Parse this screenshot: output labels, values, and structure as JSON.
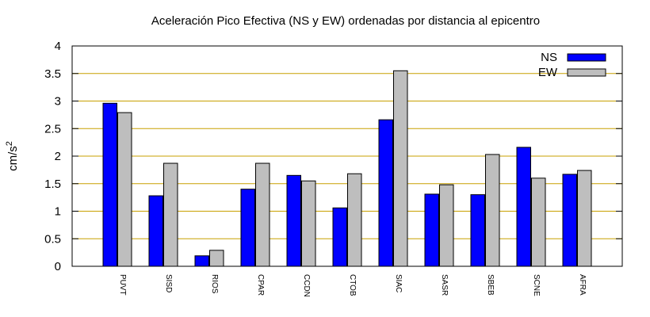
{
  "chart_data": {
    "type": "bar",
    "title": "Aceleración Pico Efectiva (NS y EW) ordenadas por distancia al epicentro",
    "xlabel": "",
    "ylabel": "cm/s",
    "ylabel_sup": "2",
    "ylim": [
      0,
      4
    ],
    "yticks": [
      0,
      0.5,
      1,
      1.5,
      2,
      2.5,
      3,
      3.5,
      4
    ],
    "ytick_labels": [
      "0",
      "0.5",
      "1",
      "1.5",
      "2",
      "2.5",
      "3",
      "3.5",
      "4"
    ],
    "grid": "horizontal",
    "legend_position": "top-right",
    "categories": [
      "PUVT",
      "SISD",
      "RIOS",
      "CPAR",
      "CCDN",
      "CTOB",
      "SIAC",
      "SASR",
      "SBEB",
      "SCNE",
      "AFRA"
    ],
    "series": [
      {
        "name": "NS",
        "color": "#0000ff",
        "values": [
          2.96,
          1.28,
          0.19,
          1.4,
          1.65,
          1.06,
          2.66,
          1.31,
          1.3,
          2.16,
          1.67
        ]
      },
      {
        "name": "EW",
        "color": "#bebebe",
        "values": [
          2.79,
          1.87,
          0.29,
          1.87,
          1.55,
          1.68,
          3.55,
          1.48,
          2.03,
          1.6,
          1.74
        ]
      }
    ],
    "grid_color": "#c8a000"
  }
}
